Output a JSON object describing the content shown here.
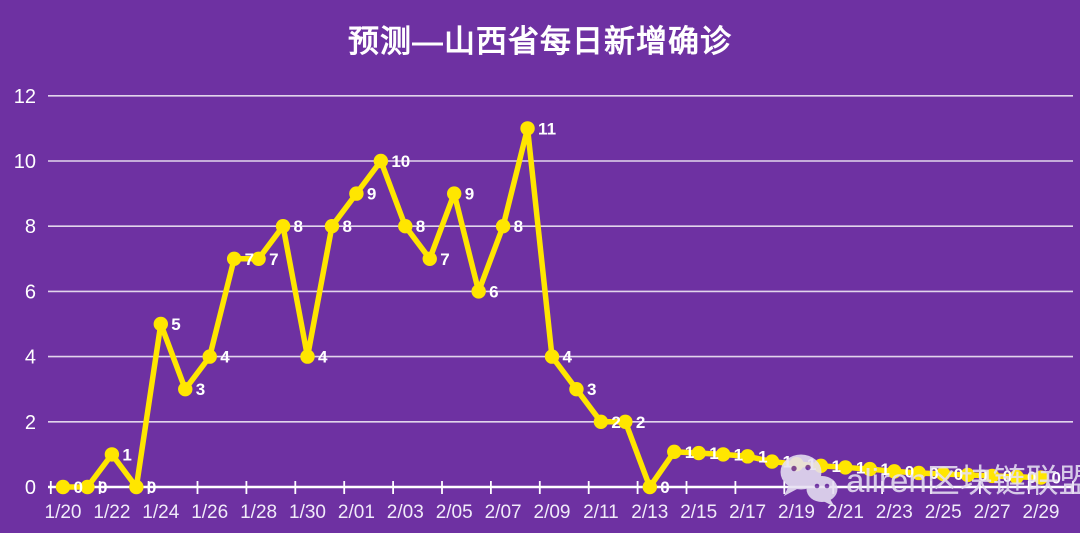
{
  "title": "预测—山西省每日新增确诊",
  "watermark": {
    "icon": "wechat-icon",
    "text": "aliren区块链联盟"
  },
  "colors": {
    "background": "#6E31A2",
    "series": "#FFE600",
    "grid": "rgba(255,255,255,0.8)",
    "axis": "#FFFFFF",
    "text": "#FFFFFF",
    "tick_label": "#F1EBF9",
    "watermark": "#E6E0F2"
  },
  "chart_data": {
    "type": "line",
    "title": "预测—山西省每日新增确诊",
    "xlabel": "",
    "ylabel": "",
    "ylim": [
      0,
      12
    ],
    "y_ticks": [
      0,
      2,
      4,
      6,
      8,
      10,
      12
    ],
    "grid": "horizontal",
    "legend_position": "none",
    "marker": "circle",
    "x": [
      "1/20",
      "1/21",
      "1/22",
      "1/23",
      "1/24",
      "1/25",
      "1/26",
      "1/27",
      "1/28",
      "1/29",
      "1/30",
      "1/31",
      "2/01",
      "2/02",
      "2/03",
      "2/04",
      "2/05",
      "2/06",
      "2/07",
      "2/08",
      "2/09",
      "2/10",
      "2/11",
      "2/12",
      "2/13",
      "2/14",
      "2/15",
      "2/16",
      "2/17",
      "2/18",
      "2/19",
      "2/20",
      "2/21",
      "2/22",
      "2/23",
      "2/24",
      "2/25",
      "2/26",
      "2/27",
      "2/28",
      "2/29"
    ],
    "x_tick_labels": [
      "1/20",
      "1/22",
      "1/24",
      "1/26",
      "1/28",
      "1/30",
      "2/01",
      "2/03",
      "2/05",
      "2/07",
      "2/09",
      "2/11",
      "2/13",
      "2/15",
      "2/17",
      "2/19",
      "2/21",
      "2/23",
      "2/25",
      "2/27",
      "2/29"
    ],
    "values": [
      0,
      0,
      1,
      0,
      5,
      3,
      4,
      7,
      7,
      8,
      4,
      8,
      9,
      10,
      8,
      7,
      9,
      6,
      8,
      11,
      4,
      3,
      2,
      2,
      0,
      1,
      1,
      1,
      1,
      1,
      1,
      1,
      1,
      1,
      0,
      0,
      0,
      0,
      0,
      0,
      0
    ],
    "plot_values": [
      0,
      0,
      1,
      0,
      5,
      3,
      4,
      7,
      7,
      8,
      4,
      8,
      9,
      10,
      8,
      7,
      9,
      6,
      8,
      11,
      4,
      3,
      2,
      2,
      0,
      1.08,
      1.04,
      1.0,
      0.94,
      0.78,
      0.7,
      0.65,
      0.6,
      0.55,
      0.48,
      0.43,
      0.4,
      0.37,
      0.34,
      0.31,
      0.29
    ],
    "point_labels": [
      "0",
      "0",
      "1",
      "0",
      "5",
      "3",
      "4",
      "7",
      "7",
      "8",
      "4",
      "8",
      "9",
      "10",
      "8",
      "7",
      "9",
      "6",
      "8",
      "11",
      "4",
      "3",
      "2",
      "2",
      "0",
      "1",
      "1",
      "1",
      "1",
      "1",
      "1",
      "1",
      "1",
      "1",
      "0",
      "0",
      "0",
      "0",
      "0",
      "0",
      "0"
    ]
  }
}
